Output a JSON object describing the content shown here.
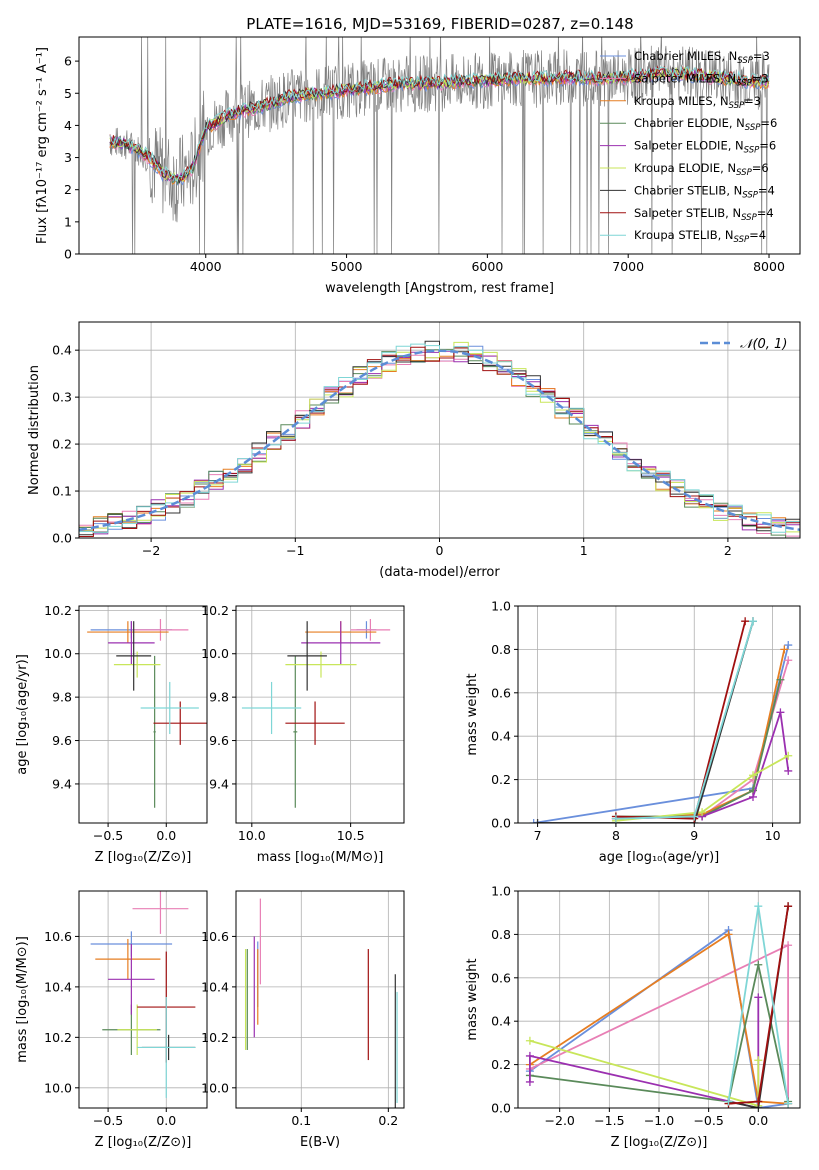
{
  "figure": {
    "title": "PLATE=1616, MJD=53169, FIBERID=0287, z=0.148"
  },
  "models": [
    {
      "name": "Chabrier MILES, N_SSP=3",
      "color": "#6a8fdc"
    },
    {
      "name": "Salpeter MILES, N_SSP=3",
      "color": "#e87fb5"
    },
    {
      "name": "Kroupa MILES, N_SSP=3",
      "color": "#e67e22"
    },
    {
      "name": "Chabrier ELODIE, N_SSP=6",
      "color": "#5a8a5a"
    },
    {
      "name": "Salpeter ELODIE, N_SSP=6",
      "color": "#9b30b0"
    },
    {
      "name": "Kroupa ELODIE, N_SSP=6",
      "color": "#c8e65a"
    },
    {
      "name": "Chabrier STELIB, N_SSP=4",
      "color": "#333333"
    },
    {
      "name": "Salpeter STELIB, N_SSP=4",
      "color": "#a01010"
    },
    {
      "name": "Kroupa STELIB, N_SSP=4",
      "color": "#7fd6d6"
    }
  ],
  "chart_data": [
    {
      "type": "line",
      "id": "spectrum",
      "xlabel": "wavelength [Angstrom, rest frame]",
      "ylabel": "Flux [f_λ 10^-17 erg cm^-2 s^-1 A^-1]",
      "xlim": [
        3100,
        8220
      ],
      "ylim": [
        0,
        6.75
      ],
      "xticks": [
        4000,
        5000,
        6000,
        7000,
        8000
      ],
      "yticks": [
        0,
        1,
        2,
        3,
        4,
        5,
        6
      ],
      "grid": false,
      "legend": "right",
      "data_color": "#808080",
      "continuum": {
        "x": [
          3320,
          3400,
          3500,
          3600,
          3700,
          3800,
          3900,
          4000,
          4200,
          4400,
          4600,
          4800,
          5000,
          5200,
          5400,
          5600,
          5800,
          6000,
          6200,
          6400,
          6600,
          6800,
          7000,
          7200,
          7400,
          7600,
          7800,
          8000
        ],
        "y": [
          3.5,
          3.45,
          3.3,
          3.0,
          2.5,
          2.3,
          2.6,
          3.9,
          4.4,
          4.6,
          4.9,
          5.0,
          5.1,
          5.2,
          5.3,
          5.3,
          5.35,
          5.4,
          5.45,
          5.45,
          5.5,
          5.45,
          5.5,
          5.6,
          5.6,
          5.5,
          5.4,
          5.35
        ]
      }
    },
    {
      "type": "line",
      "id": "residuals",
      "xlabel": "(data-model)/error",
      "ylabel": "Normed distribution",
      "xlim": [
        -2.5,
        2.5
      ],
      "ylim": [
        0,
        0.46
      ],
      "xticks": [
        -2,
        -1,
        0,
        1,
        2
      ],
      "yticks": [
        0.0,
        0.1,
        0.2,
        0.3,
        0.4
      ],
      "grid": true,
      "legend": "top-right",
      "gaussian_label": "N(0,1)",
      "gaussian_color": "#5b8dd6"
    },
    {
      "type": "scatter",
      "id": "age-vs-Z",
      "xlabel": "Z [log10(Z/Z_sun)]",
      "ylabel": "age [log10(age/yr)]",
      "xlim": [
        -0.75,
        0.35
      ],
      "ylim": [
        9.22,
        10.22
      ],
      "xticks": [
        -0.5,
        0.0
      ],
      "yticks": [
        9.4,
        9.6,
        9.8,
        10.0,
        10.2
      ],
      "grid": true,
      "points": [
        {
          "x": -0.3,
          "y": 10.11,
          "xerr": 0.35,
          "yerr": 0.04,
          "color": "#6a8fdc"
        },
        {
          "x": -0.05,
          "y": 10.11,
          "xerr": 0.24,
          "yerr": 0.05,
          "color": "#e87fb5"
        },
        {
          "x": -0.33,
          "y": 10.1,
          "xerr": 0.35,
          "yerr": 0.05,
          "color": "#e67e22"
        },
        {
          "x": -0.1,
          "y": 9.64,
          "xerr": 0.01,
          "yerr": 0.35,
          "color": "#5a8a5a"
        },
        {
          "x": -0.3,
          "y": 10.05,
          "xerr": 0.2,
          "yerr": 0.1,
          "color": "#9b30b0"
        },
        {
          "x": -0.25,
          "y": 9.95,
          "xerr": 0.2,
          "yerr": 0.06,
          "color": "#c8e65a"
        },
        {
          "x": -0.28,
          "y": 9.99,
          "xerr": 0.15,
          "yerr": 0.16,
          "color": "#333333"
        },
        {
          "x": 0.12,
          "y": 9.68,
          "xerr": 0.23,
          "yerr": 0.1,
          "color": "#a01010"
        },
        {
          "x": 0.03,
          "y": 9.75,
          "xerr": 0.25,
          "yerr": 0.12,
          "color": "#7fd6d6"
        }
      ]
    },
    {
      "type": "scatter",
      "id": "age-vs-mass",
      "xlabel": "mass [log10(M/M_sun)]",
      "ylabel": "",
      "xlim": [
        9.92,
        10.77
      ],
      "ylim": [
        9.22,
        10.22
      ],
      "xticks": [
        10.0,
        10.5
      ],
      "yticks": [
        9.4,
        9.6,
        9.8,
        10.0,
        10.2
      ],
      "grid": true,
      "points": [
        {
          "x": 10.58,
          "y": 10.11,
          "xerr": 0.05,
          "yerr": 0.04,
          "color": "#6a8fdc"
        },
        {
          "x": 10.6,
          "y": 10.11,
          "xerr": 0.1,
          "yerr": 0.05,
          "color": "#e87fb5"
        },
        {
          "x": 10.45,
          "y": 10.1,
          "xerr": 0.18,
          "yerr": 0.05,
          "color": "#e67e22"
        },
        {
          "x": 10.22,
          "y": 9.64,
          "xerr": 0.01,
          "yerr": 0.35,
          "color": "#5a8a5a"
        },
        {
          "x": 10.45,
          "y": 10.05,
          "xerr": 0.2,
          "yerr": 0.1,
          "color": "#9b30b0"
        },
        {
          "x": 10.35,
          "y": 9.95,
          "xerr": 0.18,
          "yerr": 0.06,
          "color": "#c8e65a"
        },
        {
          "x": 10.28,
          "y": 9.99,
          "xerr": 0.1,
          "yerr": 0.16,
          "color": "#333333"
        },
        {
          "x": 10.32,
          "y": 9.68,
          "xerr": 0.15,
          "yerr": 0.1,
          "color": "#a01010"
        },
        {
          "x": 10.1,
          "y": 9.75,
          "xerr": 0.15,
          "yerr": 0.12,
          "color": "#7fd6d6"
        }
      ]
    },
    {
      "type": "line",
      "id": "massweight-vs-age",
      "xlabel": "age [log10(age/yr)]",
      "ylabel": "mass weight",
      "xlim": [
        6.75,
        10.35
      ],
      "ylim": [
        0,
        1.0
      ],
      "xticks": [
        7,
        8,
        9,
        10
      ],
      "yticks": [
        0.0,
        0.2,
        0.4,
        0.6,
        0.8,
        1.0
      ],
      "grid": true,
      "series": [
        {
          "color": "#6a8fdc",
          "x": [
            6.95,
            9.75,
            10.2
          ],
          "y": [
            0.0,
            0.16,
            0.82
          ]
        },
        {
          "color": "#e87fb5",
          "x": [
            8.0,
            9.1,
            9.75,
            10.2
          ],
          "y": [
            0.02,
            0.03,
            0.2,
            0.75
          ]
        },
        {
          "color": "#e67e22",
          "x": [
            8.0,
            9.1,
            9.75,
            10.15
          ],
          "y": [
            0.02,
            0.04,
            0.15,
            0.8
          ]
        },
        {
          "color": "#5a8a5a",
          "x": [
            8.0,
            9.1,
            9.75,
            10.1
          ],
          "y": [
            0.03,
            0.03,
            0.15,
            0.66
          ]
        },
        {
          "color": "#9b30b0",
          "x": [
            8.0,
            9.1,
            9.75,
            10.1,
            10.2
          ],
          "y": [
            0.02,
            0.03,
            0.12,
            0.51,
            0.24
          ]
        },
        {
          "color": "#c8e65a",
          "x": [
            8.0,
            9.1,
            9.75,
            10.2
          ],
          "y": [
            0.01,
            0.05,
            0.22,
            0.31
          ]
        },
        {
          "color": "#333333",
          "x": [
            7.0,
            9.0,
            9.75
          ],
          "y": [
            0.0,
            0.0,
            0.93
          ]
        },
        {
          "color": "#a01010",
          "x": [
            8.0,
            9.0,
            9.65
          ],
          "y": [
            0.03,
            0.02,
            0.93
          ]
        },
        {
          "color": "#7fd6d6",
          "x": [
            8.0,
            9.0,
            9.75
          ],
          "y": [
            0.02,
            0.03,
            0.93
          ]
        }
      ]
    },
    {
      "type": "scatter",
      "id": "mass-vs-Z",
      "xlabel": "Z [log10(Z/Z_sun)]",
      "ylabel": "mass [log10(M/M_sun)]",
      "xlim": [
        -0.75,
        0.35
      ],
      "ylim": [
        9.92,
        10.78
      ],
      "xticks": [
        -0.5,
        0.0
      ],
      "yticks": [
        10.0,
        10.2,
        10.4,
        10.6
      ],
      "grid": true,
      "points": [
        {
          "x": -0.3,
          "y": 10.57,
          "xerr": 0.35,
          "yerr": 0.05,
          "color": "#6a8fdc"
        },
        {
          "x": -0.05,
          "y": 10.71,
          "xerr": 0.24,
          "yerr": 0.1,
          "color": "#e87fb5"
        },
        {
          "x": -0.33,
          "y": 10.51,
          "xerr": 0.28,
          "yerr": 0.08,
          "color": "#e67e22"
        },
        {
          "x": -0.3,
          "y": 10.23,
          "xerr": 0.25,
          "yerr": 0.1,
          "color": "#5a8a5a"
        },
        {
          "x": -0.3,
          "y": 10.43,
          "xerr": 0.2,
          "yerr": 0.14,
          "color": "#9b30b0"
        },
        {
          "x": -0.25,
          "y": 10.23,
          "xerr": 0.17,
          "yerr": 0.1,
          "color": "#c8e65a"
        },
        {
          "x": 0.02,
          "y": 10.16,
          "xerr": 0.23,
          "yerr": 0.05,
          "color": "#333333"
        },
        {
          "x": 0.0,
          "y": 10.32,
          "xerr": 0.25,
          "yerr": 0.22,
          "color": "#a01010"
        },
        {
          "x": 0.0,
          "y": 10.16,
          "xerr": 0.25,
          "yerr": 0.2,
          "color": "#7fd6d6"
        }
      ]
    },
    {
      "type": "scatter",
      "id": "ebv",
      "xlabel": "E(B-V)",
      "ylabel": "",
      "xlim": [
        0.025,
        0.218
      ],
      "ylim": [
        9.92,
        10.78
      ],
      "xticks": [
        0.1,
        0.2
      ],
      "yticks": [
        10.0,
        10.2,
        10.4,
        10.6
      ],
      "grid": true,
      "points": [
        {
          "x": 0.05,
          "y": 10.45,
          "yerr": 0.13,
          "color": "#6a8fdc"
        },
        {
          "x": 0.053,
          "y": 10.58,
          "yerr": 0.17,
          "color": "#e87fb5"
        },
        {
          "x": 0.05,
          "y": 10.4,
          "yerr": 0.15,
          "color": "#e67e22"
        },
        {
          "x": 0.038,
          "y": 10.35,
          "yerr": 0.2,
          "color": "#5a8a5a"
        },
        {
          "x": 0.046,
          "y": 10.4,
          "yerr": 0.2,
          "color": "#9b30b0"
        },
        {
          "x": 0.036,
          "y": 10.35,
          "yerr": 0.2,
          "color": "#c8e65a"
        },
        {
          "x": 0.208,
          "y": 10.15,
          "yerr": 0.3,
          "color": "#333333"
        },
        {
          "x": 0.177,
          "y": 10.33,
          "yerr": 0.22,
          "color": "#a01010"
        },
        {
          "x": 0.21,
          "y": 10.16,
          "yerr": 0.22,
          "color": "#7fd6d6"
        }
      ]
    },
    {
      "type": "line",
      "id": "massweight-vs-Z",
      "xlabel": "Z [log10(Z/Z_sun)]",
      "ylabel": "mass weight",
      "xlim": [
        -2.42,
        0.42
      ],
      "ylim": [
        0,
        1.0
      ],
      "xticks": [
        -2.0,
        -1.5,
        -1.0,
        -0.5,
        0.0
      ],
      "yticks": [
        0.0,
        0.2,
        0.4,
        0.6,
        0.8,
        1.0
      ],
      "grid": true,
      "series": [
        {
          "color": "#6a8fdc",
          "x": [
            -2.3,
            -0.3,
            0.0,
            0.3
          ],
          "y": [
            0.17,
            0.82,
            0.0,
            0.02
          ]
        },
        {
          "color": "#e87fb5",
          "x": [
            -2.3,
            0.3,
            0.3
          ],
          "y": [
            0.18,
            0.75,
            0.02
          ]
        },
        {
          "color": "#e67e22",
          "x": [
            -2.3,
            -0.3,
            0.0,
            0.3
          ],
          "y": [
            0.2,
            0.8,
            0.03,
            0.02
          ]
        },
        {
          "color": "#5a8a5a",
          "x": [
            -2.3,
            -0.3,
            0.0,
            0.3
          ],
          "y": [
            0.15,
            0.03,
            0.66,
            0.03
          ]
        },
        {
          "color": "#9b30b0",
          "x": [
            -2.3,
            -2.3,
            0.0,
            0.0
          ],
          "y": [
            0.12,
            0.24,
            0.0,
            0.51
          ]
        },
        {
          "color": "#c8e65a",
          "x": [
            -2.3,
            0.0,
            0.0
          ],
          "y": [
            0.31,
            0.01,
            0.22
          ]
        },
        {
          "color": "#333333",
          "x": [
            -0.3,
            0.0,
            0.3
          ],
          "y": [
            0.03,
            0.0,
            0.93
          ]
        },
        {
          "color": "#a01010",
          "x": [
            -0.3,
            0.0,
            0.3
          ],
          "y": [
            0.02,
            0.03,
            0.93
          ]
        },
        {
          "color": "#7fd6d6",
          "x": [
            -0.3,
            0.0,
            0.3
          ],
          "y": [
            0.03,
            0.93,
            0.02
          ]
        }
      ]
    }
  ]
}
